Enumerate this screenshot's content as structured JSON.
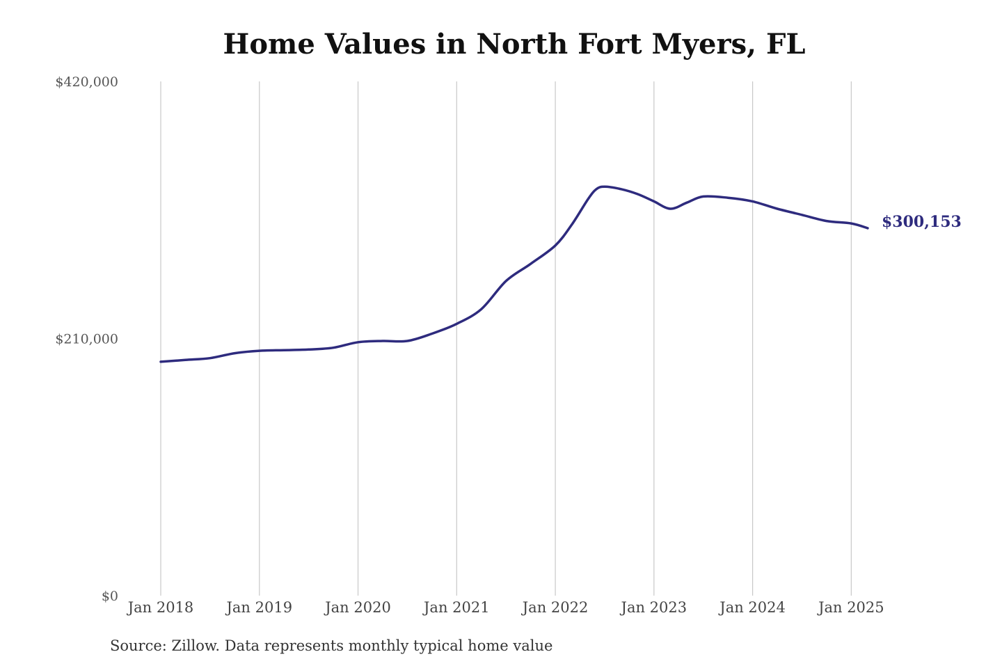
{
  "chart_data": {
    "type": "line",
    "title": "Home Values in North Fort Myers, FL",
    "source": "Source: Zillow. Data represents monthly typical home value",
    "xlabel": "",
    "ylabel": "",
    "ylim": [
      0,
      420000
    ],
    "y_ticks": [
      "$0",
      "$210,000",
      "$420,000"
    ],
    "y_tick_values": [
      0,
      210000,
      420000
    ],
    "x_ticks": [
      "Jan 2018",
      "Jan 2019",
      "Jan 2020",
      "Jan 2021",
      "Jan 2022",
      "Jan 2023",
      "Jan 2024",
      "Jan 2025"
    ],
    "x_tick_dates": [
      "2018-01",
      "2019-01",
      "2020-01",
      "2021-01",
      "2022-01",
      "2023-01",
      "2024-01",
      "2025-01"
    ],
    "xlim": [
      "2018-01",
      "2025-03"
    ],
    "grid": "vertical",
    "legend": "none",
    "end_label": "$300,153",
    "color": "#2e2b7e",
    "series": [
      {
        "x": [
          "2018-01",
          "2018-04",
          "2018-07",
          "2018-10",
          "2019-01",
          "2019-04",
          "2019-07",
          "2019-10",
          "2020-01",
          "2020-04",
          "2020-07",
          "2020-10",
          "2021-01",
          "2021-04",
          "2021-07",
          "2021-10",
          "2022-01",
          "2022-03",
          "2022-05",
          "2022-06",
          "2022-07",
          "2022-09",
          "2022-11",
          "2023-01",
          "2023-03",
          "2023-05",
          "2023-07",
          "2023-10",
          "2024-01",
          "2024-04",
          "2024-07",
          "2024-10",
          "2025-01",
          "2025-03"
        ],
        "values": [
          191000,
          192500,
          194000,
          198000,
          200000,
          200500,
          201000,
          202500,
          207000,
          208000,
          208000,
          214000,
          222000,
          234000,
          257000,
          271000,
          286000,
          303000,
          324000,
          332000,
          334000,
          332000,
          328000,
          322000,
          316000,
          321000,
          326000,
          325000,
          322000,
          316000,
          311000,
          306000,
          304000,
          300153
        ]
      }
    ]
  }
}
